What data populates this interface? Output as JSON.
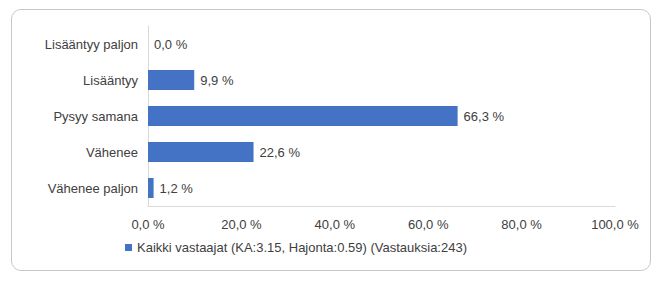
{
  "chart_data": {
    "type": "bar",
    "orientation": "horizontal",
    "categories": [
      "Lisääntyy paljon",
      "Lisääntyy",
      "Pysyy samana",
      "Vähenee",
      "Vähenee paljon"
    ],
    "series": [
      {
        "name": "Kaikki vastaajat (KA:3.15, Hajonta:0.59) (Vastauksia:243)",
        "color": "#4472c4",
        "values": [
          0.0,
          9.9,
          66.3,
          22.6,
          1.2
        ],
        "value_labels": [
          "0,0 %",
          "9,9 %",
          "66,3 %",
          "22,6 %",
          "1,2 %"
        ]
      }
    ],
    "xlim": [
      0,
      100
    ],
    "xticks": [
      {
        "value": 0,
        "label": "0,0 %"
      },
      {
        "value": 20,
        "label": "20,0 %"
      },
      {
        "value": 40,
        "label": "40,0 %"
      },
      {
        "value": 60,
        "label": "60,0 %"
      },
      {
        "value": 80,
        "label": "80,0 %"
      },
      {
        "value": 100,
        "label": "100,0 %"
      }
    ],
    "grid": false,
    "data_labels": true,
    "legend": "bottom"
  }
}
